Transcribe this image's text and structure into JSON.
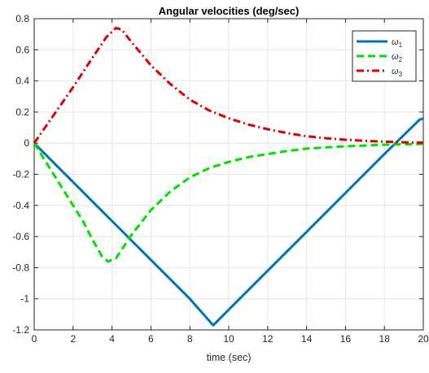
{
  "chart_data": {
    "type": "line",
    "title": "Angular velocities (deg/sec)",
    "xlabel": "time (sec)",
    "ylabel": "",
    "xlim": [
      0,
      20
    ],
    "ylim": [
      -1.2,
      0.8
    ],
    "xticks": [
      0,
      2,
      4,
      6,
      8,
      10,
      12,
      14,
      16,
      18,
      20
    ],
    "yticks": [
      0.8,
      0.6,
      0.4,
      0.2,
      0,
      -0.2,
      -0.4,
      -0.6,
      -0.8,
      -1,
      -1.2
    ],
    "xtick_labels": [
      "0",
      "2",
      "4",
      "6",
      "8",
      "10",
      "12",
      "14",
      "16",
      "18",
      "20"
    ],
    "ytick_labels": [
      "0.8",
      "0.6",
      "0.4",
      "0.2",
      "0",
      "-0.2",
      "-0.4",
      "-0.6",
      "-0.8",
      "-1",
      "-1.2"
    ],
    "grid": true,
    "legend_position": "top-right",
    "series": [
      {
        "name": "ω1",
        "name_base": "ω",
        "name_sub": "1",
        "color": "#0072BD",
        "style": "solid",
        "x": [
          0,
          2,
          4,
          6,
          8,
          9.2,
          10,
          12,
          14,
          16,
          18,
          19.8,
          20
        ],
        "y": [
          0,
          -0.25,
          -0.5,
          -0.75,
          -1.0,
          -1.17,
          -1.07,
          -0.82,
          -0.57,
          -0.32,
          -0.07,
          0.15,
          0.16
        ]
      },
      {
        "name": "ω2",
        "name_base": "ω",
        "name_sub": "2",
        "color": "#00E000",
        "style": "dashed",
        "x": [
          0,
          0.5,
          1,
          1.5,
          2,
          2.5,
          3,
          3.5,
          3.8,
          4.2,
          5,
          6,
          7,
          8,
          9,
          10,
          11,
          12,
          13,
          14,
          15,
          16,
          17,
          18,
          19,
          20
        ],
        "y": [
          0,
          -0.1,
          -0.2,
          -0.3,
          -0.4,
          -0.5,
          -0.62,
          -0.73,
          -0.76,
          -0.74,
          -0.59,
          -0.43,
          -0.31,
          -0.22,
          -0.16,
          -0.12,
          -0.09,
          -0.07,
          -0.05,
          -0.035,
          -0.027,
          -0.02,
          -0.015,
          -0.01,
          -0.008,
          -0.005
        ]
      },
      {
        "name": "ω3",
        "name_base": "ω",
        "name_sub": "3",
        "color": "#DD0000",
        "style": "dashdot",
        "x": [
          0,
          1,
          2,
          3,
          3.7,
          4.2,
          4.5,
          5,
          6,
          7,
          8,
          9,
          10,
          11,
          12,
          13,
          14,
          15,
          16,
          17,
          18,
          19,
          20
        ],
        "y": [
          0,
          0.18,
          0.36,
          0.55,
          0.68,
          0.74,
          0.73,
          0.65,
          0.5,
          0.38,
          0.28,
          0.21,
          0.16,
          0.12,
          0.09,
          0.065,
          0.045,
          0.032,
          0.022,
          0.015,
          0.01,
          0.006,
          0.003
        ]
      }
    ]
  }
}
